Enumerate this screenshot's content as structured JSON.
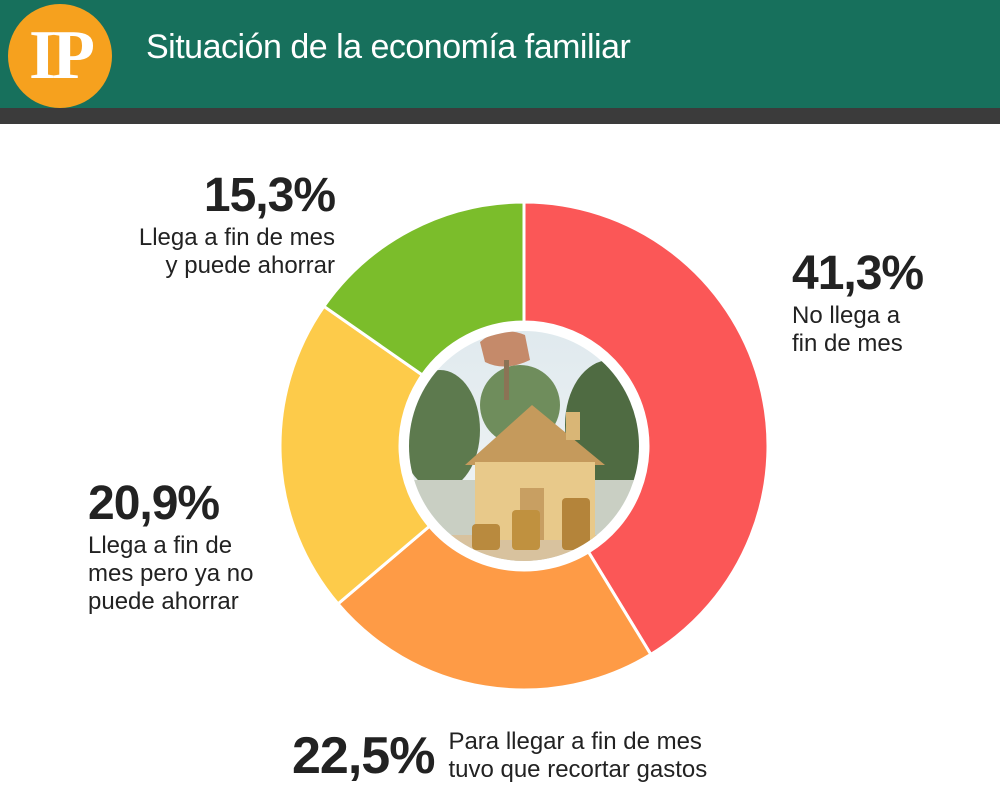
{
  "header": {
    "logo_text": "IP",
    "title": "Situación de la economía familiar"
  },
  "colors": {
    "header_bg": "#17705c",
    "logo_bg": "#f6a11e"
  },
  "chart_data": {
    "type": "pie",
    "style": "donut",
    "title": "Situación de la economía familiar",
    "center_image": "house-with-coins-photo",
    "slices": [
      {
        "value": 41.3,
        "label": "41,3%",
        "text": "No llega a\nfin de mes",
        "color": "#fb5757"
      },
      {
        "value": 22.5,
        "label": "22,5%",
        "text": "Para llegar a fin de mes\ntuvo que recortar gastos",
        "color": "#fe9b46"
      },
      {
        "value": 20.9,
        "label": "20,9%",
        "text": "Llega a fin de\nmes pero ya no\npuede ahorrar",
        "color": "#fdcb4a"
      },
      {
        "value": 15.3,
        "label": "15,3%",
        "text": "Llega a fin de mes\ny puede ahorrar",
        "color": "#7bbd2b"
      }
    ]
  }
}
